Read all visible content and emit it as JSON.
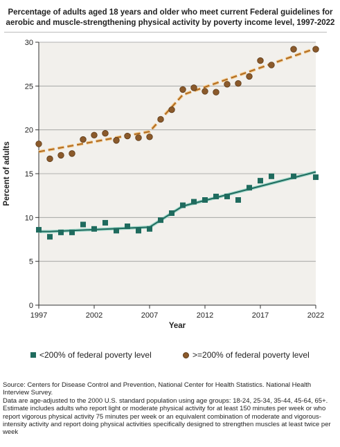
{
  "chart_data": {
    "type": "scatter",
    "title": "Percentage of adults aged 18 years and older who meet current Federal guidelines for aerobic and muscle-strengthening physical activity by poverty income level, 1997-2022",
    "xlabel": "Year",
    "ylabel": "Percent of adults",
    "xlim": [
      1997,
      2022
    ],
    "ylim": [
      0,
      30
    ],
    "x_ticks": [
      1997,
      2002,
      2007,
      2012,
      2017,
      2022
    ],
    "y_ticks": [
      0,
      5,
      10,
      15,
      20,
      25,
      30
    ],
    "grid": "horizontal",
    "legend_position": "bottom",
    "series": [
      {
        "name": "<200% of federal poverty level",
        "marker": "square",
        "color": "#1f6b5e",
        "trend_color": "#1f6b5e",
        "x": [
          1997,
          1998,
          1999,
          2000,
          2001,
          2002,
          2003,
          2004,
          2005,
          2006,
          2007,
          2008,
          2009,
          2010,
          2011,
          2012,
          2013,
          2014,
          2015,
          2016,
          2017,
          2018,
          2020,
          2022
        ],
        "values": [
          8.6,
          7.8,
          8.3,
          8.3,
          9.2,
          8.7,
          9.4,
          8.5,
          9.0,
          8.5,
          8.7,
          9.7,
          10.5,
          11.4,
          11.8,
          12.0,
          12.4,
          12.4,
          12.0,
          13.4,
          14.2,
          14.7,
          14.7,
          14.6
        ],
        "trend_x": [
          1997,
          1998,
          2007,
          2010,
          2022
        ],
        "trend_values": [
          8.4,
          8.4,
          8.9,
          11.3,
          15.2
        ]
      },
      {
        "name": ">=200% of federal poverty level",
        "marker": "circle",
        "color": "#8b5a2b",
        "trend_color": "#b06a1f",
        "x": [
          1997,
          1998,
          1999,
          2000,
          2001,
          2002,
          2003,
          2004,
          2005,
          2006,
          2007,
          2008,
          2009,
          2010,
          2011,
          2012,
          2013,
          2014,
          2015,
          2016,
          2017,
          2018,
          2020,
          2022
        ],
        "values": [
          18.4,
          16.7,
          17.1,
          17.3,
          18.9,
          19.4,
          19.6,
          18.8,
          19.3,
          19.1,
          19.2,
          21.2,
          22.3,
          24.6,
          24.8,
          24.4,
          24.3,
          25.2,
          25.3,
          26.1,
          27.9,
          27.4,
          29.2,
          29.2
        ],
        "trend_x": [
          1997,
          2007,
          2010,
          2022
        ],
        "trend_values": [
          17.5,
          19.8,
          24.0,
          29.3
        ]
      }
    ]
  },
  "notes": {
    "source": "Source: Centers for Disease Control and Prevention, National Center for Health Statistics. National Health Interview Survey.",
    "standardization": "Data are age-adjusted to the 2000 U.S. standard population using age groups: 18-24, 25-34, 35-44, 45-64, 65+.",
    "definition": "Estimate includes adults who report light or moderate physical activity for at least 150 minutes per week or who report vigorous physical activity 75 minutes per week or an equivalent combination of moderate and vigorous-intensity activity and report doing physical activities specifically designed to strengthen muscles at least twice per week"
  }
}
